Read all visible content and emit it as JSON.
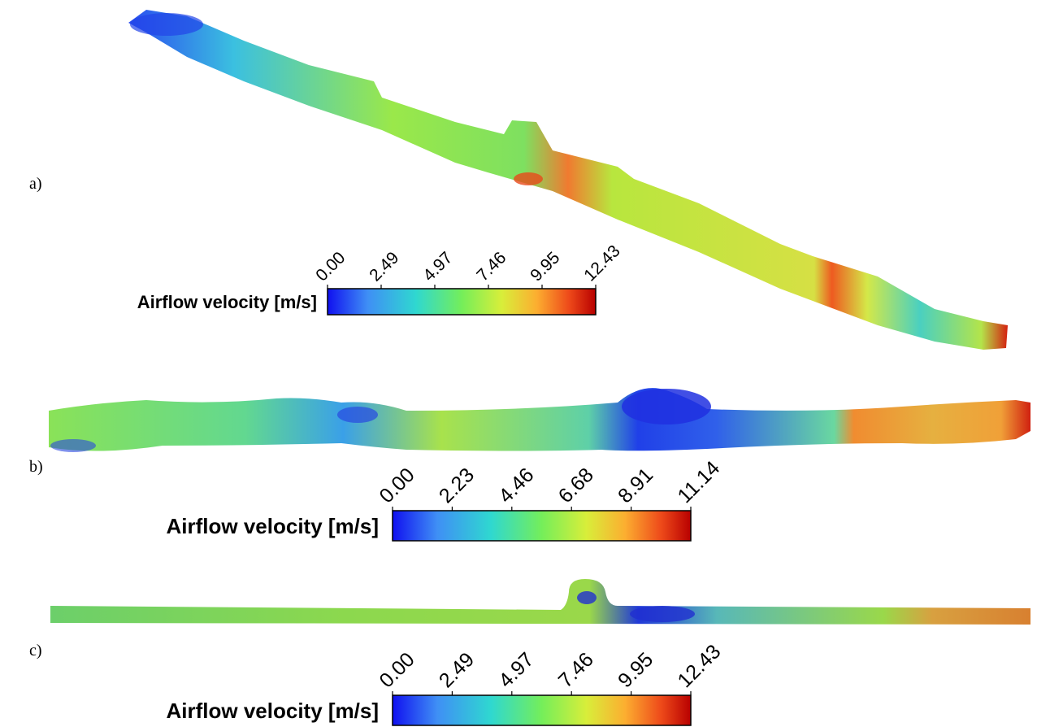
{
  "panels": [
    {
      "label": "a)",
      "colorbar": {
        "title": "Airflow velocity [m/s]",
        "ticks": [
          "0.00",
          "2.49",
          "4.97",
          "7.46",
          "9.95",
          "12.43"
        ]
      }
    },
    {
      "label": "b)",
      "colorbar": {
        "title": "Airflow velocity [m/s]",
        "ticks": [
          "0.00",
          "2.23",
          "4.46",
          "6.68",
          "8.91",
          "11.14"
        ]
      }
    },
    {
      "label": "c)",
      "colorbar": {
        "title": "Airflow velocity [m/s]",
        "ticks": [
          "0.00",
          "2.49",
          "4.97",
          "7.46",
          "9.95",
          "12.43"
        ]
      }
    }
  ]
}
